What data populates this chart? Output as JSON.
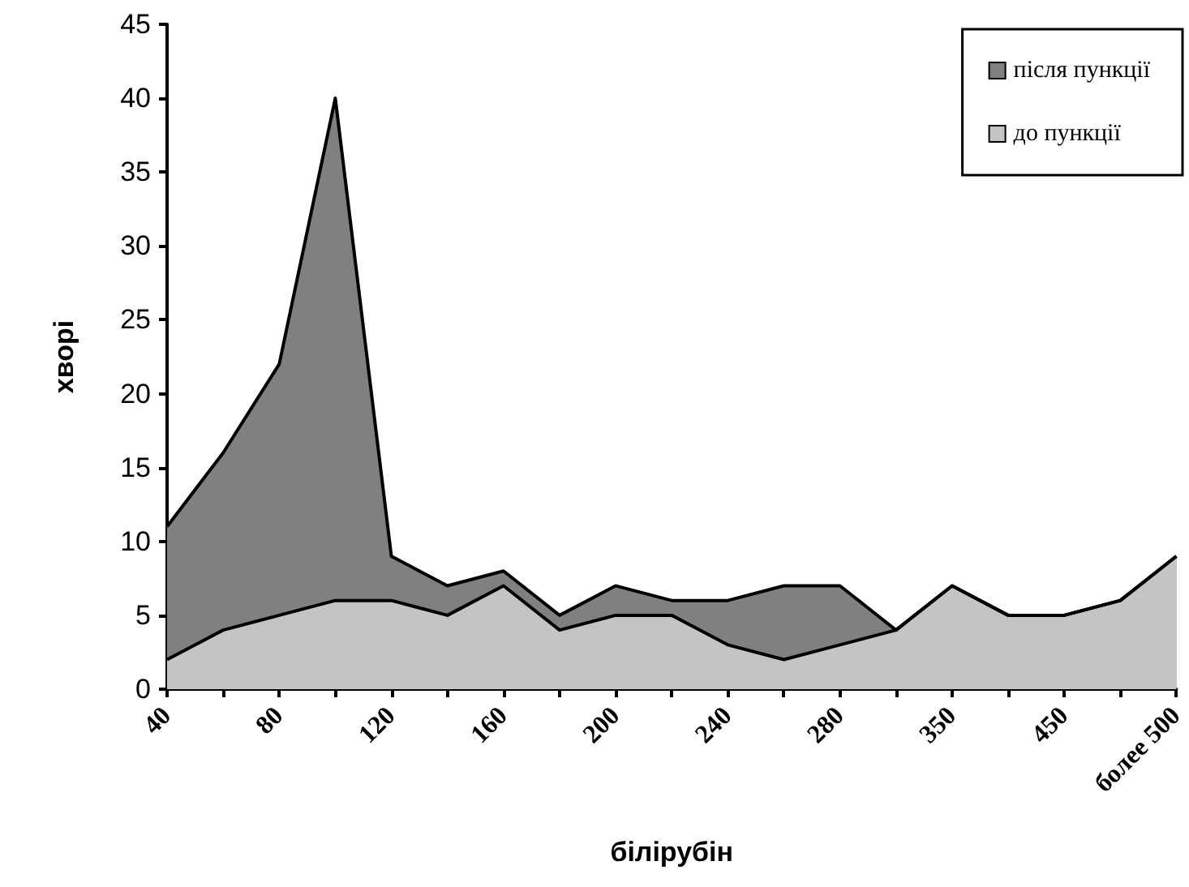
{
  "chart_data": {
    "type": "area",
    "xlabel": "білірубін",
    "ylabel": "хворі",
    "categories": [
      "40",
      null,
      "80",
      null,
      "120",
      null,
      "160",
      null,
      "200",
      null,
      "240",
      null,
      "280",
      null,
      "350",
      null,
      "450",
      null,
      "более 500"
    ],
    "series": [
      {
        "name": "після пункції",
        "color": "#808080",
        "values": [
          11,
          16,
          22,
          40,
          9,
          7,
          8,
          5,
          7,
          6,
          6,
          7,
          7,
          4,
          7,
          5,
          5,
          6,
          9
        ]
      },
      {
        "name": "до пункції",
        "color": "#c4c4c4",
        "values": [
          2,
          4,
          5,
          6,
          6,
          5,
          7,
          4,
          5,
          5,
          3,
          2,
          3,
          4,
          7,
          5,
          5,
          6,
          9
        ]
      }
    ],
    "ylim": [
      0,
      45
    ],
    "yticks": [
      0,
      5,
      10,
      15,
      20,
      25,
      30,
      35,
      40,
      45
    ],
    "grid": false,
    "legend": "top right",
    "marker": "none",
    "line_style": "solid"
  }
}
